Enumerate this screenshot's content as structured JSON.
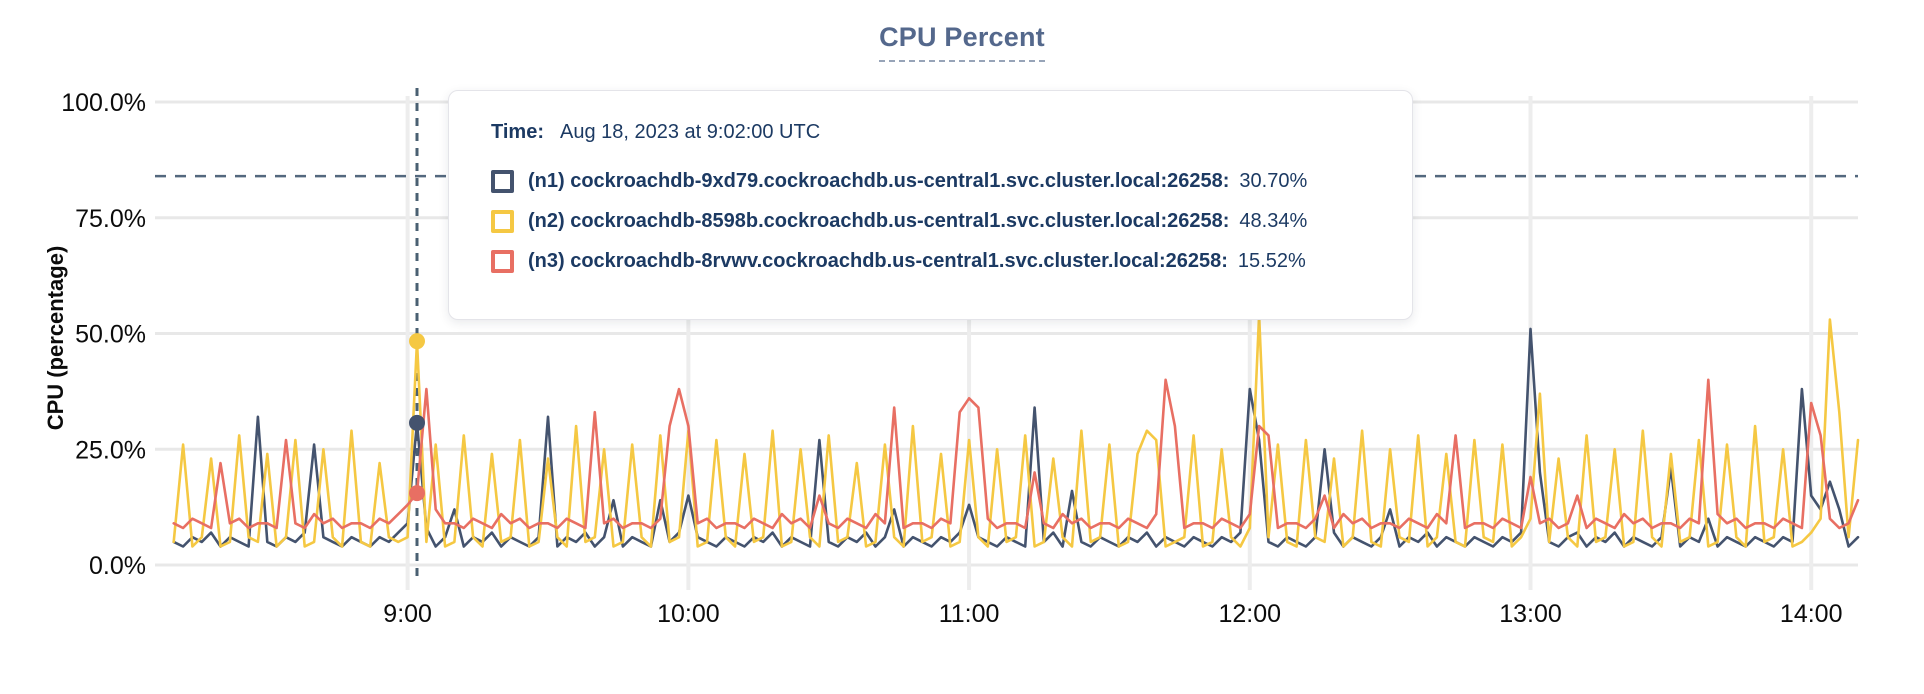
{
  "title": "CPU Percent",
  "tooltip": {
    "time_label": "Time:",
    "time_value": "Aug 18, 2023 at 9:02:00 UTC",
    "entries": [
      {
        "label": "(n1) cockroachdb-9xd79.cockroachdb.us-central1.svc.cluster.local:26258:",
        "value": "30.70%",
        "color": "#44536e"
      },
      {
        "label": "(n2) cockroachdb-8598b.cockroachdb.us-central1.svc.cluster.local:26258:",
        "value": "48.34%",
        "color": "#f5c843"
      },
      {
        "label": "(n3) cockroachdb-8rvwv.cockroachdb.us-central1.svc.cluster.local:26258:",
        "value": "15.52%",
        "color": "#e86f63"
      }
    ]
  },
  "chart_data": {
    "type": "line",
    "title": "CPU Percent",
    "xlabel": "",
    "ylabel": "CPU (percentage)",
    "ylim": [
      0,
      100
    ],
    "grid": true,
    "legend_position": "tooltip-overlay",
    "y_ticks": [
      {
        "value": 0,
        "label": "0.0%"
      },
      {
        "value": 25,
        "label": "25.0%"
      },
      {
        "value": 50,
        "label": "50.0%"
      },
      {
        "value": 75,
        "label": "75.0%"
      },
      {
        "value": 100,
        "label": "100.0%"
      }
    ],
    "x_ticks": [
      {
        "minute": 540,
        "label": "9:00"
      },
      {
        "minute": 600,
        "label": "10:00"
      },
      {
        "minute": 660,
        "label": "11:00"
      },
      {
        "minute": 720,
        "label": "12:00"
      },
      {
        "minute": 780,
        "label": "13:00"
      },
      {
        "minute": 840,
        "label": "14:00"
      }
    ],
    "x_range_minutes": [
      486,
      850
    ],
    "series_start_minute": 490,
    "sample_interval_minutes": 2,
    "threshold_value": 84,
    "threshold_color": "#53687e",
    "hover": {
      "minute": 542,
      "time_text": "Aug 18, 2023 at 9:02:00 UTC",
      "line_color": "#4a6072",
      "values": {
        "n1": 30.7,
        "n2": 48.34,
        "n3": 15.52
      }
    },
    "grid_color_h": "#e8e8e8",
    "grid_color_v": "#ededed",
    "series": [
      {
        "name": "n1",
        "address": "cockroachdb-9xd79.cockroachdb.us-central1.svc.cluster.local:26258",
        "color": "#44536e",
        "values": [
          5,
          4,
          6,
          5,
          7,
          4,
          6,
          5,
          4,
          32,
          5,
          4,
          6,
          5,
          7,
          26,
          6,
          5,
          4,
          6,
          5,
          4,
          6,
          5,
          7,
          9,
          30.7,
          8,
          4,
          6,
          12,
          4,
          6,
          5,
          7,
          4,
          6,
          5,
          4,
          6,
          32,
          4,
          6,
          5,
          7,
          4,
          6,
          14,
          4,
          6,
          5,
          4,
          14,
          5,
          7,
          15,
          6,
          5,
          4,
          6,
          5,
          4,
          6,
          5,
          7,
          4,
          6,
          5,
          4,
          27,
          5,
          4,
          6,
          5,
          7,
          4,
          6,
          12,
          4,
          6,
          5,
          4,
          6,
          5,
          7,
          13,
          6,
          5,
          4,
          6,
          5,
          4,
          34,
          5,
          7,
          4,
          16,
          5,
          4,
          6,
          5,
          4,
          6,
          5,
          7,
          4,
          6,
          5,
          4,
          6,
          5,
          4,
          6,
          5,
          7,
          38,
          27,
          5,
          4,
          6,
          5,
          4,
          6,
          25,
          7,
          4,
          6,
          5,
          4,
          6,
          12,
          4,
          6,
          5,
          7,
          4,
          6,
          5,
          4,
          6,
          5,
          4,
          6,
          5,
          7,
          51,
          20,
          5,
          4,
          6,
          7,
          4,
          6,
          5,
          7,
          4,
          6,
          5,
          4,
          6,
          21,
          4,
          6,
          5,
          10,
          4,
          6,
          5,
          4,
          6,
          5,
          4,
          6,
          5,
          38,
          15,
          12,
          18,
          12,
          4,
          6
        ]
      },
      {
        "name": "n2",
        "address": "cockroachdb-8598b.cockroachdb.us-central1.svc.cluster.local:26258",
        "color": "#f5c843",
        "values": [
          5,
          26,
          4,
          6,
          23,
          4,
          5,
          28,
          6,
          5,
          24,
          4,
          6,
          27,
          4,
          5,
          25,
          6,
          4,
          29,
          5,
          4,
          22,
          6,
          5,
          6,
          48.3,
          5,
          26,
          4,
          5,
          28,
          6,
          4,
          24,
          5,
          6,
          27,
          4,
          5,
          23,
          6,
          4,
          30,
          5,
          6,
          25,
          4,
          5,
          26,
          6,
          4,
          28,
          5,
          6,
          29,
          4,
          5,
          27,
          6,
          4,
          24,
          5,
          6,
          29,
          4,
          5,
          25,
          6,
          4,
          28,
          5,
          6,
          22,
          4,
          5,
          26,
          6,
          4,
          30,
          5,
          6,
          24,
          4,
          5,
          27,
          6,
          4,
          25,
          5,
          6,
          28,
          4,
          5,
          23,
          6,
          4,
          29,
          5,
          6,
          26,
          4,
          5,
          24,
          29,
          27,
          4,
          5,
          6,
          28,
          4,
          5,
          25,
          6,
          4,
          8,
          54,
          6,
          26,
          5,
          4,
          27,
          6,
          5,
          23,
          4,
          6,
          29,
          5,
          4,
          25,
          6,
          5,
          28,
          4,
          6,
          24,
          5,
          4,
          27,
          6,
          5,
          26,
          4,
          6,
          10,
          37,
          5,
          23,
          6,
          4,
          28,
          5,
          6,
          25,
          4,
          5,
          29,
          6,
          4,
          24,
          5,
          6,
          27,
          4,
          5,
          26,
          6,
          4,
          30,
          5,
          6,
          25,
          4,
          5,
          7,
          10,
          53,
          33,
          6,
          27
        ]
      },
      {
        "name": "n3",
        "address": "cockroachdb-8rvwv.cockroachdb.us-central1.svc.cluster.local:26258",
        "color": "#e86f63",
        "values": [
          9,
          8,
          10,
          9,
          8,
          22,
          9,
          10,
          8,
          9,
          9,
          8,
          27,
          9,
          8,
          11,
          9,
          10,
          8,
          9,
          9,
          8,
          10,
          9,
          11,
          13,
          15.5,
          38,
          12,
          9,
          9,
          8,
          10,
          9,
          8,
          11,
          9,
          10,
          8,
          9,
          9,
          8,
          10,
          9,
          8,
          33,
          9,
          10,
          8,
          9,
          9,
          8,
          10,
          30,
          38,
          30,
          9,
          10,
          8,
          9,
          9,
          8,
          10,
          9,
          8,
          11,
          9,
          10,
          8,
          15,
          9,
          8,
          10,
          9,
          8,
          11,
          9,
          34,
          8,
          9,
          9,
          8,
          10,
          9,
          33,
          36,
          34,
          10,
          8,
          9,
          9,
          8,
          20,
          9,
          8,
          11,
          9,
          10,
          8,
          9,
          9,
          8,
          10,
          9,
          8,
          11,
          40,
          30,
          8,
          9,
          9,
          8,
          10,
          9,
          8,
          11,
          30,
          28,
          8,
          9,
          9,
          8,
          10,
          15,
          8,
          11,
          9,
          10,
          8,
          9,
          9,
          8,
          10,
          9,
          8,
          11,
          9,
          28,
          8,
          9,
          9,
          8,
          10,
          9,
          8,
          19,
          9,
          10,
          8,
          9,
          15,
          8,
          10,
          9,
          8,
          11,
          9,
          10,
          8,
          9,
          9,
          8,
          10,
          9,
          40,
          11,
          9,
          10,
          8,
          9,
          9,
          8,
          10,
          9,
          8,
          35,
          28,
          10,
          8,
          9,
          14
        ]
      }
    ]
  }
}
